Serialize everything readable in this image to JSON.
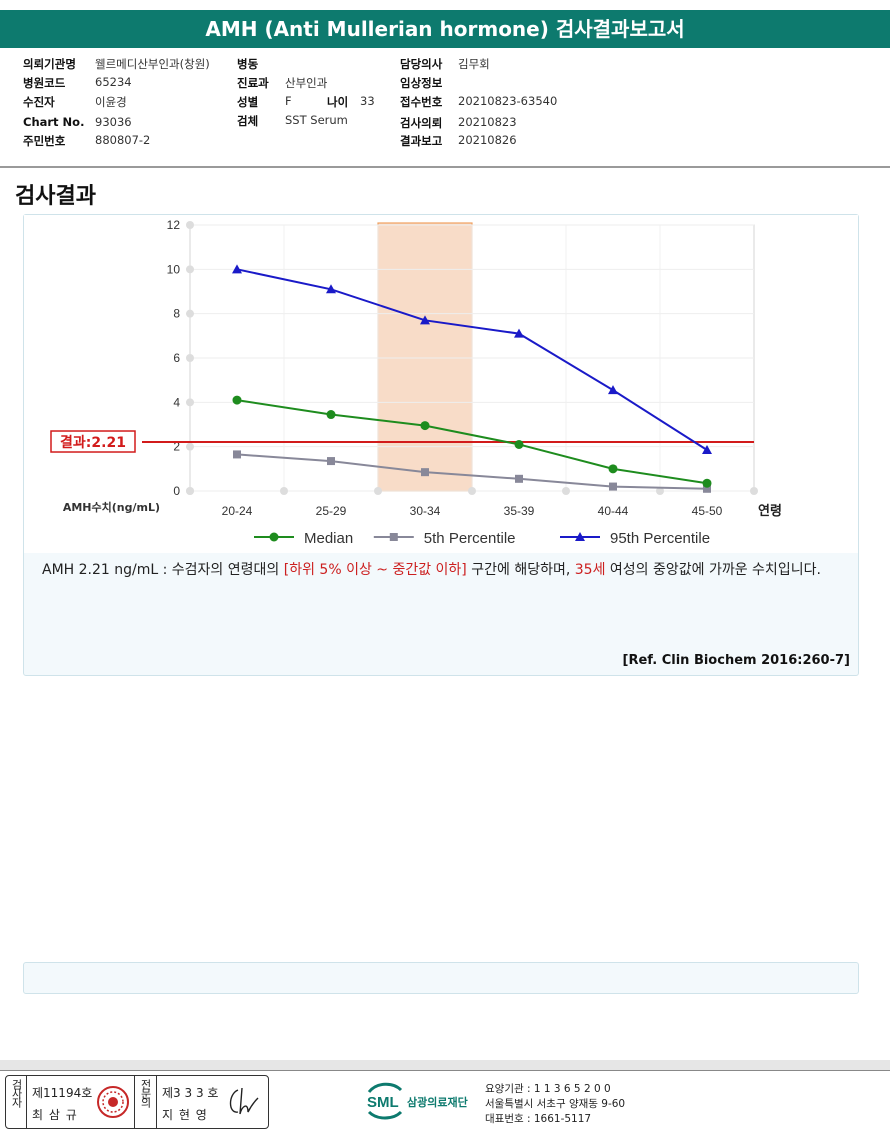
{
  "report": {
    "title": "AMH (Anti Mullerian hormone) 검사결과보고서"
  },
  "info": {
    "col1": [
      {
        "label": "의뢰기관명",
        "value": "웰르메디산부인과(창원)"
      },
      {
        "label": "병원코드",
        "value": "65234"
      },
      {
        "label": "수진자",
        "value": "이윤경"
      },
      {
        "label": "Chart No.",
        "value": "93036"
      },
      {
        "label": "주민번호",
        "value": "880807-2"
      }
    ],
    "col2": [
      {
        "label": "병동",
        "value": ""
      },
      {
        "label": "진료과",
        "value": "산부인과"
      },
      {
        "label": "성별",
        "value": "F"
      },
      {
        "label": "검체",
        "value": "SST Serum"
      }
    ],
    "age": {
      "label": "나이",
      "value": "33"
    },
    "col3": [
      {
        "label": "담당의사",
        "value": "김무회"
      },
      {
        "label": "임상정보",
        "value": ""
      },
      {
        "label": "접수번호",
        "value": "20210823-63540"
      },
      {
        "label": "검사의뢰",
        "value": "20210823"
      },
      {
        "label": "결과보고",
        "value": "20210826"
      }
    ]
  },
  "section": {
    "title": "검사결과"
  },
  "chart_data": {
    "type": "line",
    "categories": [
      "20-24",
      "25-29",
      "30-34",
      "35-39",
      "40-44",
      "45-50"
    ],
    "xlabel": "연령",
    "ylabel": "AMH수치(ng/mL)",
    "ylim": [
      0,
      12
    ],
    "yticks": [
      0,
      2,
      4,
      6,
      8,
      10,
      12
    ],
    "series": [
      {
        "name": "Median",
        "marker": "circle",
        "color": "#1e8c1e",
        "values": [
          4.1,
          3.45,
          2.95,
          2.1,
          1.0,
          0.35
        ]
      },
      {
        "name": "5th Percentile",
        "marker": "square",
        "color": "#888899",
        "values": [
          1.65,
          1.35,
          0.85,
          0.55,
          0.2,
          0.1
        ]
      },
      {
        "name": "95th Percentile",
        "marker": "triangle",
        "color": "#1a1ac8",
        "values": [
          10.0,
          9.1,
          7.7,
          7.1,
          4.55,
          1.85
        ]
      }
    ],
    "highlight_band": {
      "category": "30-34",
      "color": "#f8dcc8"
    },
    "result_line": {
      "value": 2.21,
      "label": "결과:2.21",
      "color": "#d21b1b"
    },
    "grid": true,
    "legend": "bottom"
  },
  "comment": {
    "part1": "AMH  2.21 ng/mL : 수검자의 연령대의 ",
    "highlight1": "[하위 5% 이상 ~ 중간값 이하]",
    "part2": "  구간에 해당하며, ",
    "highlight2": "35세",
    "part3": " 여성의 중앙값에 가까운 수치입니다."
  },
  "reference": "[Ref. Clin Biochem 2016:260-7]",
  "signature": {
    "inspector_label": "검사자",
    "inspector_no": "제11194호",
    "inspector_name": "최 삼 규",
    "specialist_label": "전문의",
    "specialist_no": "제3 3 3 호",
    "specialist_name": "지 현 영"
  },
  "footer": {
    "logo_text": "SML",
    "org_name": "삼광의료재단",
    "code_line": "요양기관 : 1 1 3 6 5 2 0 0",
    "address_line": "서울특별시 서초구 양재동 9-60",
    "phone_line": "대표번호 : 1661-5117"
  }
}
